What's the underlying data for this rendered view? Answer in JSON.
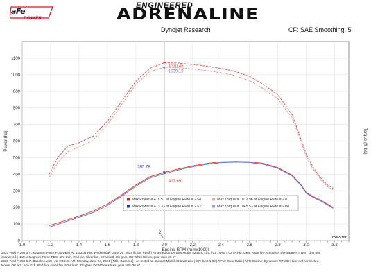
{
  "header": {
    "logo_main": "aFe",
    "logo_sub": "POWER",
    "title_top": "ENGINEERED",
    "title_main": "ADRENALINE",
    "source": "Dynojet Research",
    "cf_info": "CF: SAE Smoothing: 5"
  },
  "footer": {
    "line1": "2023 Ford F-350 6.7L Magnum Force PDS.wp8 | At: 1:43:04 PM, Wednesday, June 26, 2024 |[Title: PDS] | As tested on Dynojet Model 424xLC Linx | CF: SAE 1.03 | RPM: Gear Ratio | AFR Source: Dynoware RT WB | Linx not",
    "line2": "connected | Notes: Magnum Force PDS, aFe Exh,  Red fan, silver fan, 50% load, 7th gear, OE Wheels/tires, gear ratio 36.67",
    "line3": "2023 Ford F-350 6.7L Baseline.wp8 | At: 9:46:23 AM, Monday, June 24, 2024 |[Title: Baseline] | As tested on Dynojet Model 424xLC Linx | CF: SAE 1.02 | RPM: Gear Ratio | AFR Source: Dynoware RT WB | Linx not connected |",
    "line4": "Notes: OE AIS, aFe Exh,  Red fan, silver fan, 50% load, 7th gear, OE Wheels/tires, gear ratio 36.67"
  },
  "chart_data": {
    "type": "line",
    "xlabel": "Engine RPM (rpmx1000)",
    "ylabel_left": "Power (hp)",
    "ylabel_right": "Torque (ft-lbs)",
    "xlim": [
      1.0,
      3.3
    ],
    "ylim": [
      0,
      1200
    ],
    "x_ticks": [
      "1.0",
      "1.2",
      "1.4",
      "1.6",
      "1.8",
      "2.0",
      "2.2",
      "2.4",
      "2.6",
      "2.8",
      "3.0",
      "3.2"
    ],
    "y_ticks": [
      "0",
      "100",
      "200",
      "300",
      "400",
      "500",
      "600",
      "700",
      "800",
      "900",
      "1000",
      "1100"
    ],
    "cursor_x": 2.0,
    "cursor_label": "2",
    "grid": true,
    "series": [
      {
        "name": "Power",
        "run": "Magnum Force PDS",
        "style": "solid",
        "color": "#d9453a",
        "x": [
          1.19,
          1.3,
          1.4,
          1.5,
          1.6,
          1.7,
          1.8,
          1.9,
          2.0,
          2.1,
          2.2,
          2.3,
          2.4,
          2.5,
          2.6,
          2.7,
          2.8,
          2.9,
          2.96,
          3.0,
          3.05,
          3.1,
          3.15,
          3.19
        ],
        "y": [
          90,
          120,
          148,
          178,
          220,
          275,
          335,
          385,
          410,
          432,
          450,
          465,
          475,
          478,
          476,
          465,
          440,
          395,
          340,
          290,
          265,
          245,
          220,
          200
        ]
      },
      {
        "name": "Power",
        "run": "Baseline",
        "style": "solid",
        "color": "#6a6fd6",
        "x": [
          1.19,
          1.3,
          1.4,
          1.5,
          1.6,
          1.7,
          1.8,
          1.9,
          2.0,
          2.1,
          2.2,
          2.3,
          2.4,
          2.5,
          2.6,
          2.7,
          2.8,
          2.9,
          2.96,
          3.0,
          3.05,
          3.1,
          3.15,
          3.19
        ],
        "y": [
          80,
          112,
          140,
          170,
          212,
          268,
          328,
          378,
          403,
          426,
          445,
          460,
          470,
          473,
          471,
          460,
          436,
          390,
          336,
          286,
          260,
          240,
          215,
          195
        ]
      },
      {
        "name": "Torque",
        "run": "Magnum Force PDS",
        "style": "dashed",
        "color": "#d9453a",
        "x": [
          1.19,
          1.25,
          1.32,
          1.4,
          1.5,
          1.6,
          1.7,
          1.8,
          1.9,
          2.0,
          2.1,
          2.2,
          2.3,
          2.4,
          2.5,
          2.6,
          2.7,
          2.8,
          2.9,
          2.96,
          3.0,
          3.05,
          3.1,
          3.15,
          3.19
        ],
        "y": [
          400,
          500,
          570,
          590,
          630,
          720,
          840,
          960,
          1040,
          1072,
          1070,
          1062,
          1052,
          1038,
          1020,
          990,
          940,
          880,
          760,
          620,
          520,
          440,
          380,
          335,
          315
        ]
      },
      {
        "name": "Torque",
        "run": "Baseline",
        "style": "dashed",
        "color": "#e08f8a",
        "x": [
          1.19,
          1.25,
          1.32,
          1.4,
          1.5,
          1.6,
          1.7,
          1.8,
          1.9,
          2.0,
          2.1,
          2.2,
          2.3,
          2.4,
          2.5,
          2.6,
          2.7,
          2.8,
          2.9,
          2.96,
          3.0,
          3.05,
          3.1,
          3.15,
          3.19
        ],
        "y": [
          380,
          470,
          535,
          565,
          605,
          700,
          820,
          940,
          1020,
          1045,
          1042,
          1035,
          1025,
          1012,
          995,
          965,
          915,
          855,
          740,
          605,
          505,
          428,
          370,
          325,
          305
        ]
      }
    ],
    "annotations": [
      {
        "text": "1070.45",
        "x": 2.02,
        "y": 1070,
        "color": "#d9453a"
      },
      {
        "text": "1039.19",
        "x": 2.02,
        "y": 1039,
        "color": "#6a6fd6"
      },
      {
        "text": "395.78",
        "x": 1.98,
        "y": 404,
        "color": "#3344cc"
      },
      {
        "text": "407.69",
        "x": 2.02,
        "y": 410,
        "color": "#d9453a"
      }
    ],
    "legend": {
      "placement": "bottom-center",
      "rows": [
        {
          "power_color": "#d71920",
          "power_text": "Max Power = 478.57 at Engine RPM = 2.54",
          "torque_color": "#f0a8a0",
          "torque_text": "Max Torque = 1072.96 at Engine RPM = 2.01"
        },
        {
          "power_color": "#1a33cc",
          "power_text": "Max Power = 473.33 at Engine RPM = 2.52",
          "torque_color": "#9a9ee8",
          "torque_text": "Max Torque = 1045.53 at Engine RPM = 2.08"
        }
      ]
    },
    "watermark": "DYNOJET"
  }
}
